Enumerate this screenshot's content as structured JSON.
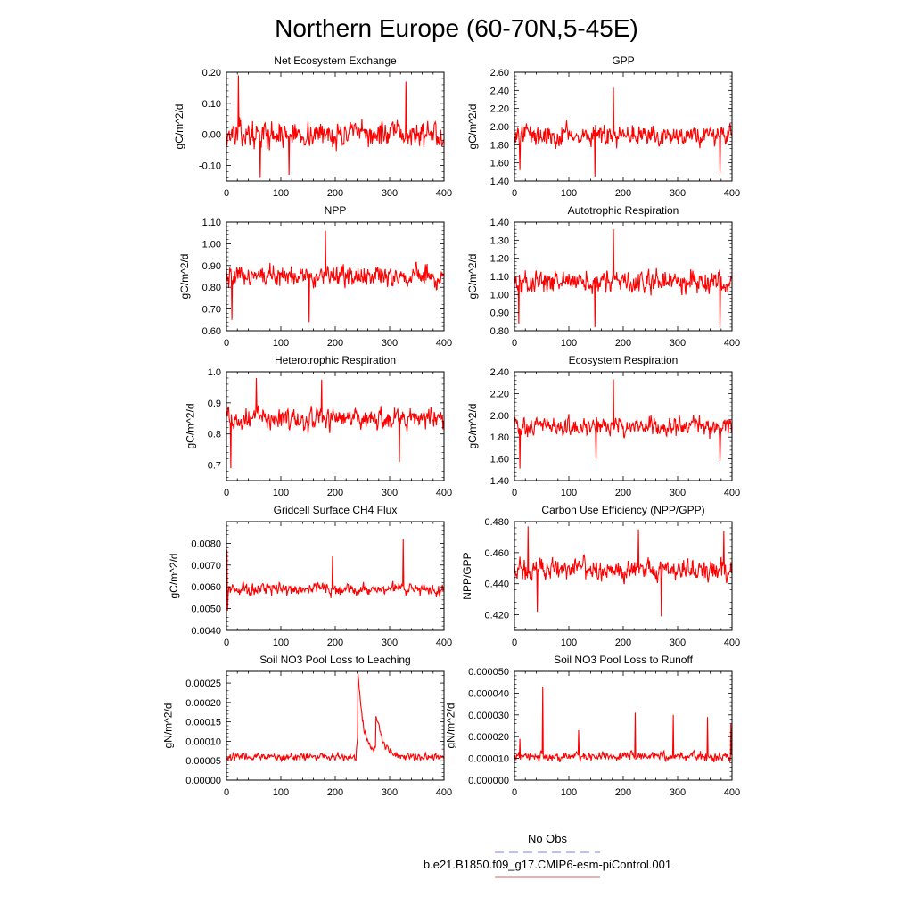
{
  "figure_title": "Northern Europe (60-70N,5-45E)",
  "legend": {
    "items": [
      {
        "label": "No Obs",
        "color": "#7b7bf0",
        "style": "dashed"
      },
      {
        "label": "b.e21.B1850.f09_g17.CMIP6-esm-piControl.001",
        "color": "#e06060",
        "style": "solid"
      }
    ]
  },
  "series_color": "#ff0000",
  "chart_data": [
    {
      "type": "line",
      "title": "Net Ecosystem Exchange",
      "xlabel": "",
      "ylabel": "gC/m^2/d",
      "xlim": [
        0,
        400
      ],
      "ylim": [
        -0.15,
        0.2
      ],
      "xticks": [
        0,
        100,
        200,
        300,
        400
      ],
      "xtick_labels": [
        "0",
        "100",
        "200",
        "300",
        "400"
      ],
      "yticks": [
        -0.1,
        0.0,
        0.1,
        0.2
      ],
      "ytick_labels": [
        "-0.10",
        "0.00",
        "0.10",
        "0.20"
      ],
      "series": [
        {
          "name": "b.e21.B1850.f09_g17.CMIP6-esm-piControl.001",
          "n": 400,
          "mean": 0.0,
          "amp": 0.05,
          "spikes": [
            {
              "x": 22,
              "y": 0.19
            },
            {
              "x": 330,
              "y": 0.17
            },
            {
              "x": 62,
              "y": -0.14
            },
            {
              "x": 115,
              "y": -0.13
            }
          ]
        }
      ]
    },
    {
      "type": "line",
      "title": "GPP",
      "xlabel": "",
      "ylabel": "gC/m^2/d",
      "xlim": [
        0,
        400
      ],
      "ylim": [
        1.4,
        2.6
      ],
      "xticks": [
        0,
        100,
        200,
        300,
        400
      ],
      "xtick_labels": [
        "0",
        "100",
        "200",
        "300",
        "400"
      ],
      "yticks": [
        1.4,
        1.6,
        1.8,
        2.0,
        2.2,
        2.4,
        2.6
      ],
      "ytick_labels": [
        "1.40",
        "1.60",
        "1.80",
        "2.00",
        "2.20",
        "2.40",
        "2.60"
      ],
      "series": [
        {
          "name": "b.e21.B1850.f09_g17.CMIP6-esm-piControl.001",
          "n": 400,
          "mean": 1.9,
          "amp": 0.14,
          "spikes": [
            {
              "x": 182,
              "y": 2.43
            },
            {
              "x": 10,
              "y": 1.52
            },
            {
              "x": 148,
              "y": 1.45
            },
            {
              "x": 378,
              "y": 1.49
            }
          ]
        }
      ]
    },
    {
      "type": "line",
      "title": "NPP",
      "xlabel": "",
      "ylabel": "gC/m^2/d",
      "xlim": [
        0,
        400
      ],
      "ylim": [
        0.6,
        1.1
      ],
      "xticks": [
        0,
        100,
        200,
        300,
        400
      ],
      "xtick_labels": [
        "0",
        "100",
        "200",
        "300",
        "400"
      ],
      "yticks": [
        0.6,
        0.7,
        0.8,
        0.9,
        1.0,
        1.1
      ],
      "ytick_labels": [
        "0.60",
        "0.70",
        "0.80",
        "0.90",
        "1.00",
        "1.10"
      ],
      "series": [
        {
          "name": "b.e21.B1850.f09_g17.CMIP6-esm-piControl.001",
          "n": 400,
          "mean": 0.85,
          "amp": 0.06,
          "spikes": [
            {
              "x": 182,
              "y": 1.06
            },
            {
              "x": 152,
              "y": 0.64
            },
            {
              "x": 10,
              "y": 0.65
            }
          ]
        }
      ]
    },
    {
      "type": "line",
      "title": "Autotrophic Respiration",
      "xlabel": "",
      "ylabel": "gC/m^2/d",
      "xlim": [
        0,
        400
      ],
      "ylim": [
        0.8,
        1.4
      ],
      "xticks": [
        0,
        100,
        200,
        300,
        400
      ],
      "xtick_labels": [
        "0",
        "100",
        "200",
        "300",
        "400"
      ],
      "yticks": [
        0.8,
        0.9,
        1.0,
        1.1,
        1.2,
        1.3,
        1.4
      ],
      "ytick_labels": [
        "0.80",
        "0.90",
        "1.00",
        "1.10",
        "1.20",
        "1.30",
        "1.40"
      ],
      "series": [
        {
          "name": "b.e21.B1850.f09_g17.CMIP6-esm-piControl.001",
          "n": 400,
          "mean": 1.07,
          "amp": 0.08,
          "spikes": [
            {
              "x": 182,
              "y": 1.36
            },
            {
              "x": 148,
              "y": 0.82
            },
            {
              "x": 378,
              "y": 0.82
            },
            {
              "x": 8,
              "y": 0.84
            }
          ]
        }
      ]
    },
    {
      "type": "line",
      "title": "Heterotrophic Respiration",
      "xlabel": "",
      "ylabel": "gC/m^2/d",
      "xlim": [
        0,
        400
      ],
      "ylim": [
        0.65,
        1.0
      ],
      "xticks": [
        0,
        100,
        200,
        300,
        400
      ],
      "xtick_labels": [
        "0",
        "100",
        "200",
        "300",
        "400"
      ],
      "yticks": [
        0.7,
        0.8,
        0.9,
        1.0
      ],
      "ytick_labels": [
        "0.7",
        "0.8",
        "0.9",
        "1.0"
      ],
      "series": [
        {
          "name": "b.e21.B1850.f09_g17.CMIP6-esm-piControl.001",
          "n": 400,
          "mean": 0.85,
          "amp": 0.045,
          "spikes": [
            {
              "x": 55,
              "y": 0.98
            },
            {
              "x": 175,
              "y": 0.975
            },
            {
              "x": 8,
              "y": 0.69
            },
            {
              "x": 318,
              "y": 0.71
            }
          ]
        }
      ]
    },
    {
      "type": "line",
      "title": "Ecosystem Respiration",
      "xlabel": "",
      "ylabel": "gC/m^2/d",
      "xlim": [
        0,
        400
      ],
      "ylim": [
        1.4,
        2.4
      ],
      "xticks": [
        0,
        100,
        200,
        300,
        400
      ],
      "xtick_labels": [
        "0",
        "100",
        "200",
        "300",
        "400"
      ],
      "yticks": [
        1.4,
        1.6,
        1.8,
        2.0,
        2.2,
        2.4
      ],
      "ytick_labels": [
        "1.40",
        "1.60",
        "1.80",
        "2.00",
        "2.20",
        "2.40"
      ],
      "series": [
        {
          "name": "b.e21.B1850.f09_g17.CMIP6-esm-piControl.001",
          "n": 400,
          "mean": 1.9,
          "amp": 0.11,
          "spikes": [
            {
              "x": 182,
              "y": 2.33
            },
            {
              "x": 10,
              "y": 1.51
            },
            {
              "x": 150,
              "y": 1.6
            },
            {
              "x": 378,
              "y": 1.58
            }
          ]
        }
      ]
    },
    {
      "type": "line",
      "title": "Gridcell Surface CH4 Flux",
      "xlabel": "",
      "ylabel": "gC/m^2/d",
      "xlim": [
        0,
        400
      ],
      "ylim": [
        0.004,
        0.009
      ],
      "xticks": [
        0,
        100,
        200,
        300,
        400
      ],
      "xtick_labels": [
        "0",
        "100",
        "200",
        "300",
        "400"
      ],
      "yticks": [
        0.004,
        0.005,
        0.006,
        0.007,
        0.008
      ],
      "ytick_labels": [
        "0.0040",
        "0.0050",
        "0.0060",
        "0.0070",
        "0.0080"
      ],
      "series": [
        {
          "name": "b.e21.B1850.f09_g17.CMIP6-esm-piControl.001",
          "n": 400,
          "mean": 0.0059,
          "amp": 0.00035,
          "spikes": [
            {
              "x": 1,
              "y": 0.0077
            },
            {
              "x": 325,
              "y": 0.0082
            },
            {
              "x": 2,
              "y": 0.0049
            },
            {
              "x": 195,
              "y": 0.0074
            }
          ]
        }
      ]
    },
    {
      "type": "line",
      "title": "Carbon Use Efficiency (NPP/GPP)",
      "xlabel": "",
      "ylabel": "NPP/GPP",
      "xlim": [
        0,
        400
      ],
      "ylim": [
        0.41,
        0.48
      ],
      "xticks": [
        0,
        100,
        200,
        300,
        400
      ],
      "xtick_labels": [
        "0",
        "100",
        "200",
        "300",
        "400"
      ],
      "yticks": [
        0.42,
        0.44,
        0.46,
        0.48
      ],
      "ytick_labels": [
        "0.420",
        "0.440",
        "0.460",
        "0.480"
      ],
      "series": [
        {
          "name": "b.e21.B1850.f09_g17.CMIP6-esm-piControl.001",
          "n": 400,
          "mean": 0.449,
          "amp": 0.009,
          "spikes": [
            {
              "x": 25,
              "y": 0.477
            },
            {
              "x": 228,
              "y": 0.475
            },
            {
              "x": 385,
              "y": 0.474
            },
            {
              "x": 42,
              "y": 0.422
            },
            {
              "x": 270,
              "y": 0.419
            }
          ]
        }
      ]
    },
    {
      "type": "line",
      "title": "Soil NO3 Pool Loss to Leaching",
      "xlabel": "",
      "ylabel": "gN/m^2/d",
      "xlim": [
        0,
        400
      ],
      "ylim": [
        0.0,
        0.00028
      ],
      "xticks": [
        0,
        100,
        200,
        300,
        400
      ],
      "xtick_labels": [
        "0",
        "100",
        "200",
        "300",
        "400"
      ],
      "yticks": [
        0.0,
        5e-05,
        0.0001,
        0.00015,
        0.0002,
        0.00025
      ],
      "ytick_labels": [
        "0.00000",
        "0.00005",
        "0.00010",
        "0.00015",
        "0.00020",
        "0.00025"
      ],
      "series": [
        {
          "name": "b.e21.B1850.f09_g17.CMIP6-esm-piControl.001",
          "n": 400,
          "mean": 6e-05,
          "amp": 1.2e-05,
          "peaks": [
            {
              "x": 242,
              "y": 0.00028,
              "decay": 10
            },
            {
              "x": 275,
              "y": 0.000155,
              "decay": 14
            }
          ]
        }
      ]
    },
    {
      "type": "line",
      "title": "Soil NO3 Pool Loss to Runoff",
      "xlabel": "",
      "ylabel": "gN/m^2/d",
      "xlim": [
        0,
        400
      ],
      "ylim": [
        0.0,
        5e-05
      ],
      "xticks": [
        0,
        100,
        200,
        300,
        400
      ],
      "xtick_labels": [
        "0",
        "100",
        "200",
        "300",
        "400"
      ],
      "yticks": [
        0.0,
        1e-05,
        2e-05,
        3e-05,
        4e-05,
        5e-05
      ],
      "ytick_labels": [
        "0.000000",
        "0.000010",
        "0.000020",
        "0.000030",
        "0.000040",
        "0.000050"
      ],
      "series": [
        {
          "name": "b.e21.B1850.f09_g17.CMIP6-esm-piControl.001",
          "n": 400,
          "mean": 1.1e-05,
          "amp": 2.5e-06,
          "spikes": [
            {
              "x": 52,
              "y": 4.3e-05
            },
            {
              "x": 222,
              "y": 3.1e-05
            },
            {
              "x": 292,
              "y": 3e-05
            },
            {
              "x": 355,
              "y": 2.9e-05
            },
            {
              "x": 398,
              "y": 2.6e-05
            },
            {
              "x": 10,
              "y": 1.9e-05
            },
            {
              "x": 118,
              "y": 2.3e-05
            }
          ]
        }
      ]
    }
  ]
}
